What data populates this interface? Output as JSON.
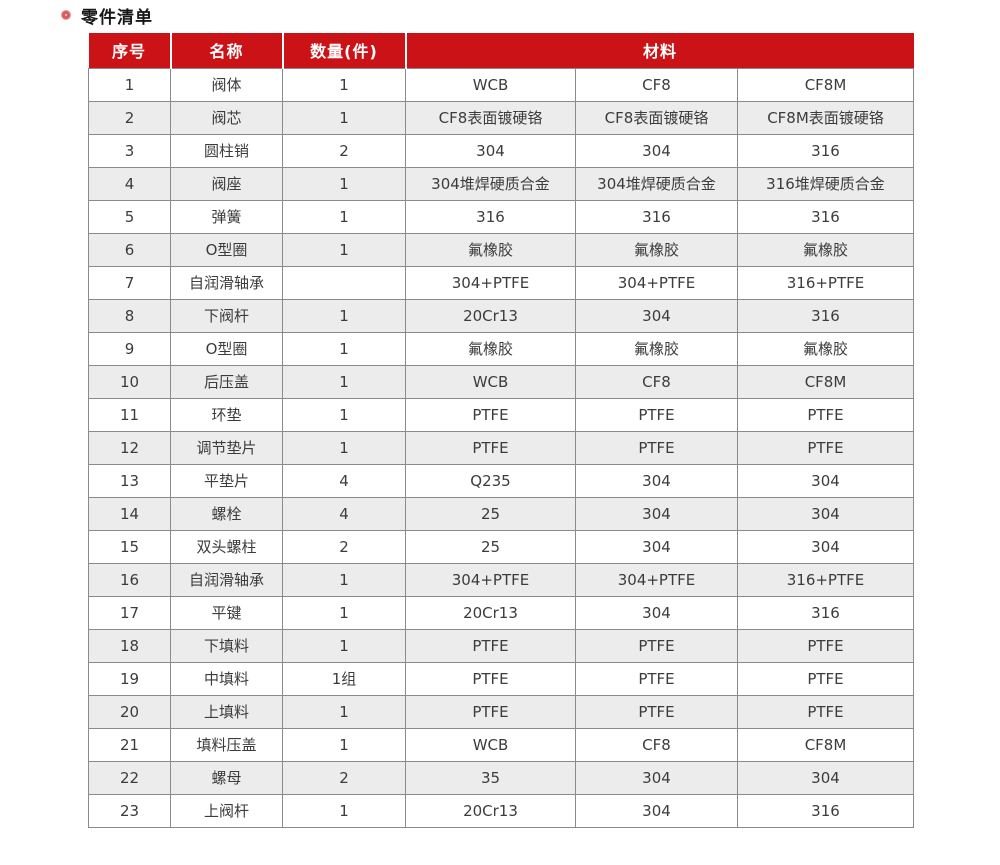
{
  "page": {
    "title": "零件清单"
  },
  "colors": {
    "header_bg": "#cb1216",
    "row_alt_bg": "#ececec",
    "border": "#8a8a8a",
    "bullet": "#dd5b5b"
  },
  "table": {
    "headers": {
      "col_no": "序号",
      "col_name": "名称",
      "col_qty": "数量(件)",
      "col_material": "材料"
    },
    "rows": [
      {
        "no": "1",
        "name": "阀体",
        "qty": "1",
        "m1": "WCB",
        "m2": "CF8",
        "m3": "CF8M"
      },
      {
        "no": "2",
        "name": "阀芯",
        "qty": "1",
        "m1": "CF8表面镀硬铬",
        "m2": "CF8表面镀硬铬",
        "m3": "CF8M表面镀硬铬"
      },
      {
        "no": "3",
        "name": "圆柱销",
        "qty": "2",
        "m1": "304",
        "m2": "304",
        "m3": "316"
      },
      {
        "no": "4",
        "name": "阀座",
        "qty": "1",
        "m1": "304堆焊硬质合金",
        "m2": "304堆焊硬质合金",
        "m3": "316堆焊硬质合金"
      },
      {
        "no": "5",
        "name": "弹簧",
        "qty": "1",
        "m1": "316",
        "m2": "316",
        "m3": "316"
      },
      {
        "no": "6",
        "name": "O型圈",
        "qty": "1",
        "m1": "氟橡胶",
        "m2": "氟橡胶",
        "m3": "氟橡胶"
      },
      {
        "no": "7",
        "name": "自润滑轴承",
        "qty": "",
        "m1": "304+PTFE",
        "m2": "304+PTFE",
        "m3": "316+PTFE"
      },
      {
        "no": "8",
        "name": "下阀杆",
        "qty": "1",
        "m1": "20Cr13",
        "m2": "304",
        "m3": "316"
      },
      {
        "no": "9",
        "name": "O型圈",
        "qty": "1",
        "m1": "氟橡胶",
        "m2": "氟橡胶",
        "m3": "氟橡胶"
      },
      {
        "no": "10",
        "name": "后压盖",
        "qty": "1",
        "m1": "WCB",
        "m2": "CF8",
        "m3": "CF8M"
      },
      {
        "no": "11",
        "name": "环垫",
        "qty": "1",
        "m1": "PTFE",
        "m2": "PTFE",
        "m3": "PTFE"
      },
      {
        "no": "12",
        "name": "调节垫片",
        "qty": "1",
        "m1": "PTFE",
        "m2": "PTFE",
        "m3": "PTFE"
      },
      {
        "no": "13",
        "name": "平垫片",
        "qty": "4",
        "m1": "Q235",
        "m2": "304",
        "m3": "304"
      },
      {
        "no": "14",
        "name": "螺栓",
        "qty": "4",
        "m1": "25",
        "m2": "304",
        "m3": "304"
      },
      {
        "no": "15",
        "name": "双头螺柱",
        "qty": "2",
        "m1": "25",
        "m2": "304",
        "m3": "304"
      },
      {
        "no": "16",
        "name": "自润滑轴承",
        "qty": "1",
        "m1": "304+PTFE",
        "m2": "304+PTFE",
        "m3": "316+PTFE"
      },
      {
        "no": "17",
        "name": "平键",
        "qty": "1",
        "m1": "20Cr13",
        "m2": "304",
        "m3": "316"
      },
      {
        "no": "18",
        "name": "下填料",
        "qty": "1",
        "m1": "PTFE",
        "m2": "PTFE",
        "m3": "PTFE"
      },
      {
        "no": "19",
        "name": "中填料",
        "qty": "1组",
        "m1": "PTFE",
        "m2": "PTFE",
        "m3": "PTFE"
      },
      {
        "no": "20",
        "name": "上填料",
        "qty": "1",
        "m1": "PTFE",
        "m2": "PTFE",
        "m3": "PTFE"
      },
      {
        "no": "21",
        "name": "填料压盖",
        "qty": "1",
        "m1": "WCB",
        "m2": "CF8",
        "m3": "CF8M"
      },
      {
        "no": "22",
        "name": "螺母",
        "qty": "2",
        "m1": "35",
        "m2": "304",
        "m3": "304"
      },
      {
        "no": "23",
        "name": "上阀杆",
        "qty": "1",
        "m1": "20Cr13",
        "m2": "304",
        "m3": "316"
      }
    ]
  }
}
